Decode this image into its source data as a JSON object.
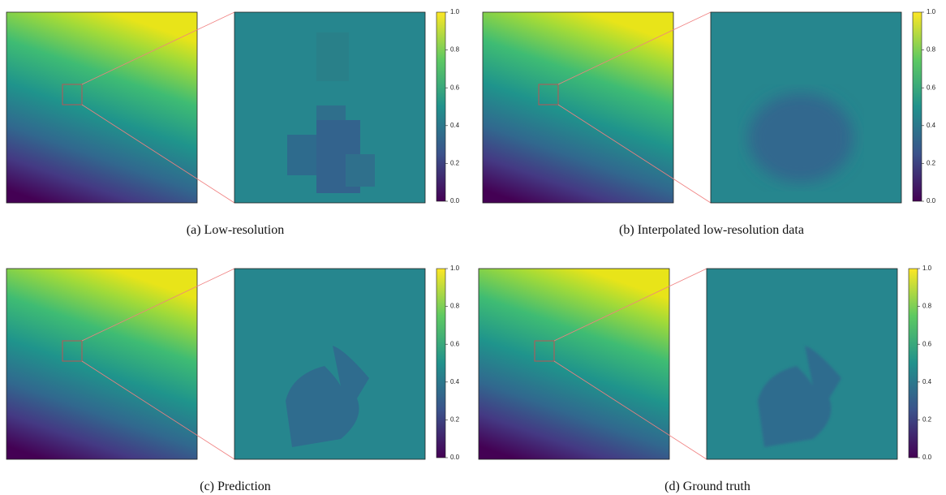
{
  "panels": [
    {
      "caption": "(a) Low-resolution"
    },
    {
      "caption": "(b) Interpolated low-resolution data"
    },
    {
      "caption": "(c) Prediction"
    },
    {
      "caption": "(d) Ground truth"
    }
  ],
  "colorbar": {
    "ylim": [
      0,
      1
    ],
    "yticks": [
      {
        "value": 0,
        "label": "0.0"
      },
      0.2,
      0.4,
      0.6,
      0.8,
      {
        "value": 1,
        "label": "1.0"
      }
    ]
  }
}
